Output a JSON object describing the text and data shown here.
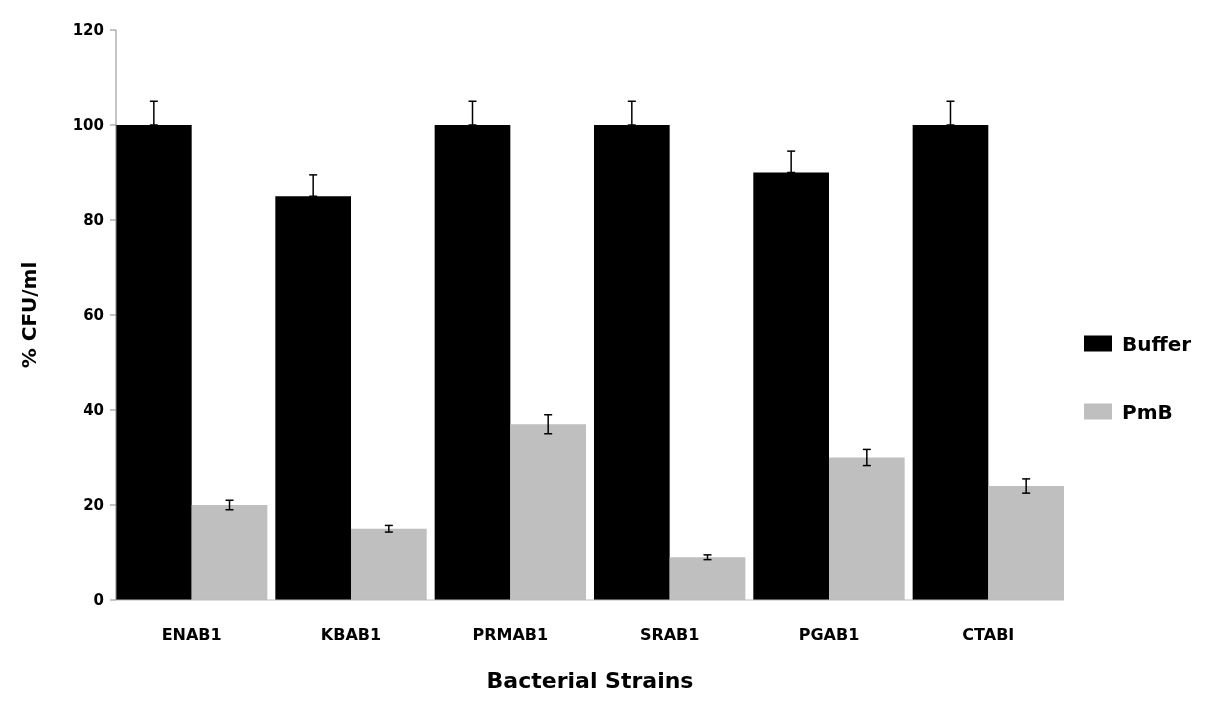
{
  "chart_data": {
    "type": "bar",
    "xlabel": "Bacterial Strains",
    "ylabel": "% CFU/ml",
    "categories": [
      "ENAB1",
      "KBAB1",
      "PRMAB1",
      "SRAB1",
      "PGAB1",
      "CTABI"
    ],
    "series": [
      {
        "name": "Buffer",
        "color": "#000000",
        "values": [
          100,
          85,
          100,
          100,
          90,
          100
        ],
        "errors": [
          [
            100,
            105
          ],
          [
            85,
            89.5
          ],
          [
            100,
            105
          ],
          [
            100,
            105
          ],
          [
            90,
            94.5
          ],
          [
            100,
            105
          ]
        ]
      },
      {
        "name": "PmB",
        "color": "#bfbfbf",
        "values": [
          20,
          15,
          37,
          9,
          30,
          24
        ],
        "errors": [
          1,
          0.7,
          2,
          0.5,
          1.7,
          1.5
        ]
      }
    ],
    "ylim": [
      0,
      120
    ],
    "yticks": [
      0,
      20,
      40,
      60,
      80,
      100,
      120
    ],
    "legend": "right"
  }
}
